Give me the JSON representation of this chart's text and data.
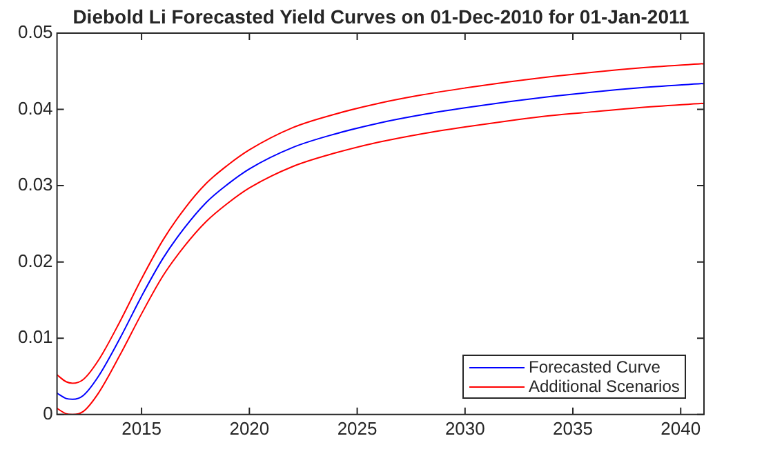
{
  "chart_data": {
    "type": "line",
    "title": "Diebold Li Forecasted Yield Curves on 01-Dec-2010 for 01-Jan-2011",
    "x": [
      2011.08,
      2011.5,
      2011.8,
      2012.3,
      2013,
      2014,
      2015,
      2016,
      2017,
      2018,
      2019,
      2020,
      2022,
      2024,
      2026,
      2028,
      2030,
      2032,
      2034,
      2036,
      2038,
      2041.08
    ],
    "series": [
      {
        "name": "Forecasted Curve",
        "color": "#0000ff",
        "values": [
          0.0028,
          0.0021,
          0.002,
          0.0025,
          0.005,
          0.01,
          0.0155,
          0.0205,
          0.0245,
          0.0278,
          0.0302,
          0.0322,
          0.035,
          0.0368,
          0.0382,
          0.0393,
          0.0402,
          0.041,
          0.0417,
          0.0423,
          0.0428,
          0.0434
        ]
      },
      {
        "name": "Additional Scenarios",
        "color": "#ff0000",
        "values": [
          0.0052,
          0.0043,
          0.0041,
          0.0046,
          0.0071,
          0.0122,
          0.0178,
          0.0229,
          0.027,
          0.0303,
          0.0327,
          0.0347,
          0.0376,
          0.0394,
          0.0408,
          0.0419,
          0.0428,
          0.0436,
          0.0443,
          0.0449,
          0.0454,
          0.046
        ]
      },
      {
        "color": "#ff0000",
        "values": [
          0.0008,
          0.0001,
          0.0,
          0.0004,
          0.0028,
          0.0078,
          0.0132,
          0.0182,
          0.0221,
          0.0253,
          0.0277,
          0.0297,
          0.0325,
          0.0343,
          0.0357,
          0.0368,
          0.0377,
          0.0385,
          0.0392,
          0.0397,
          0.0402,
          0.0408
        ]
      }
    ],
    "xlim": [
      2011.08,
      2041.08
    ],
    "xticks": [
      2015,
      2020,
      2025,
      2030,
      2035,
      2040
    ],
    "ylim": [
      0,
      0.05
    ],
    "yticks": [
      0,
      0.01,
      0.02,
      0.03,
      0.04,
      0.05
    ],
    "grid": false,
    "legend": "bottom right",
    "marker": "none",
    "line_style": "solid"
  }
}
